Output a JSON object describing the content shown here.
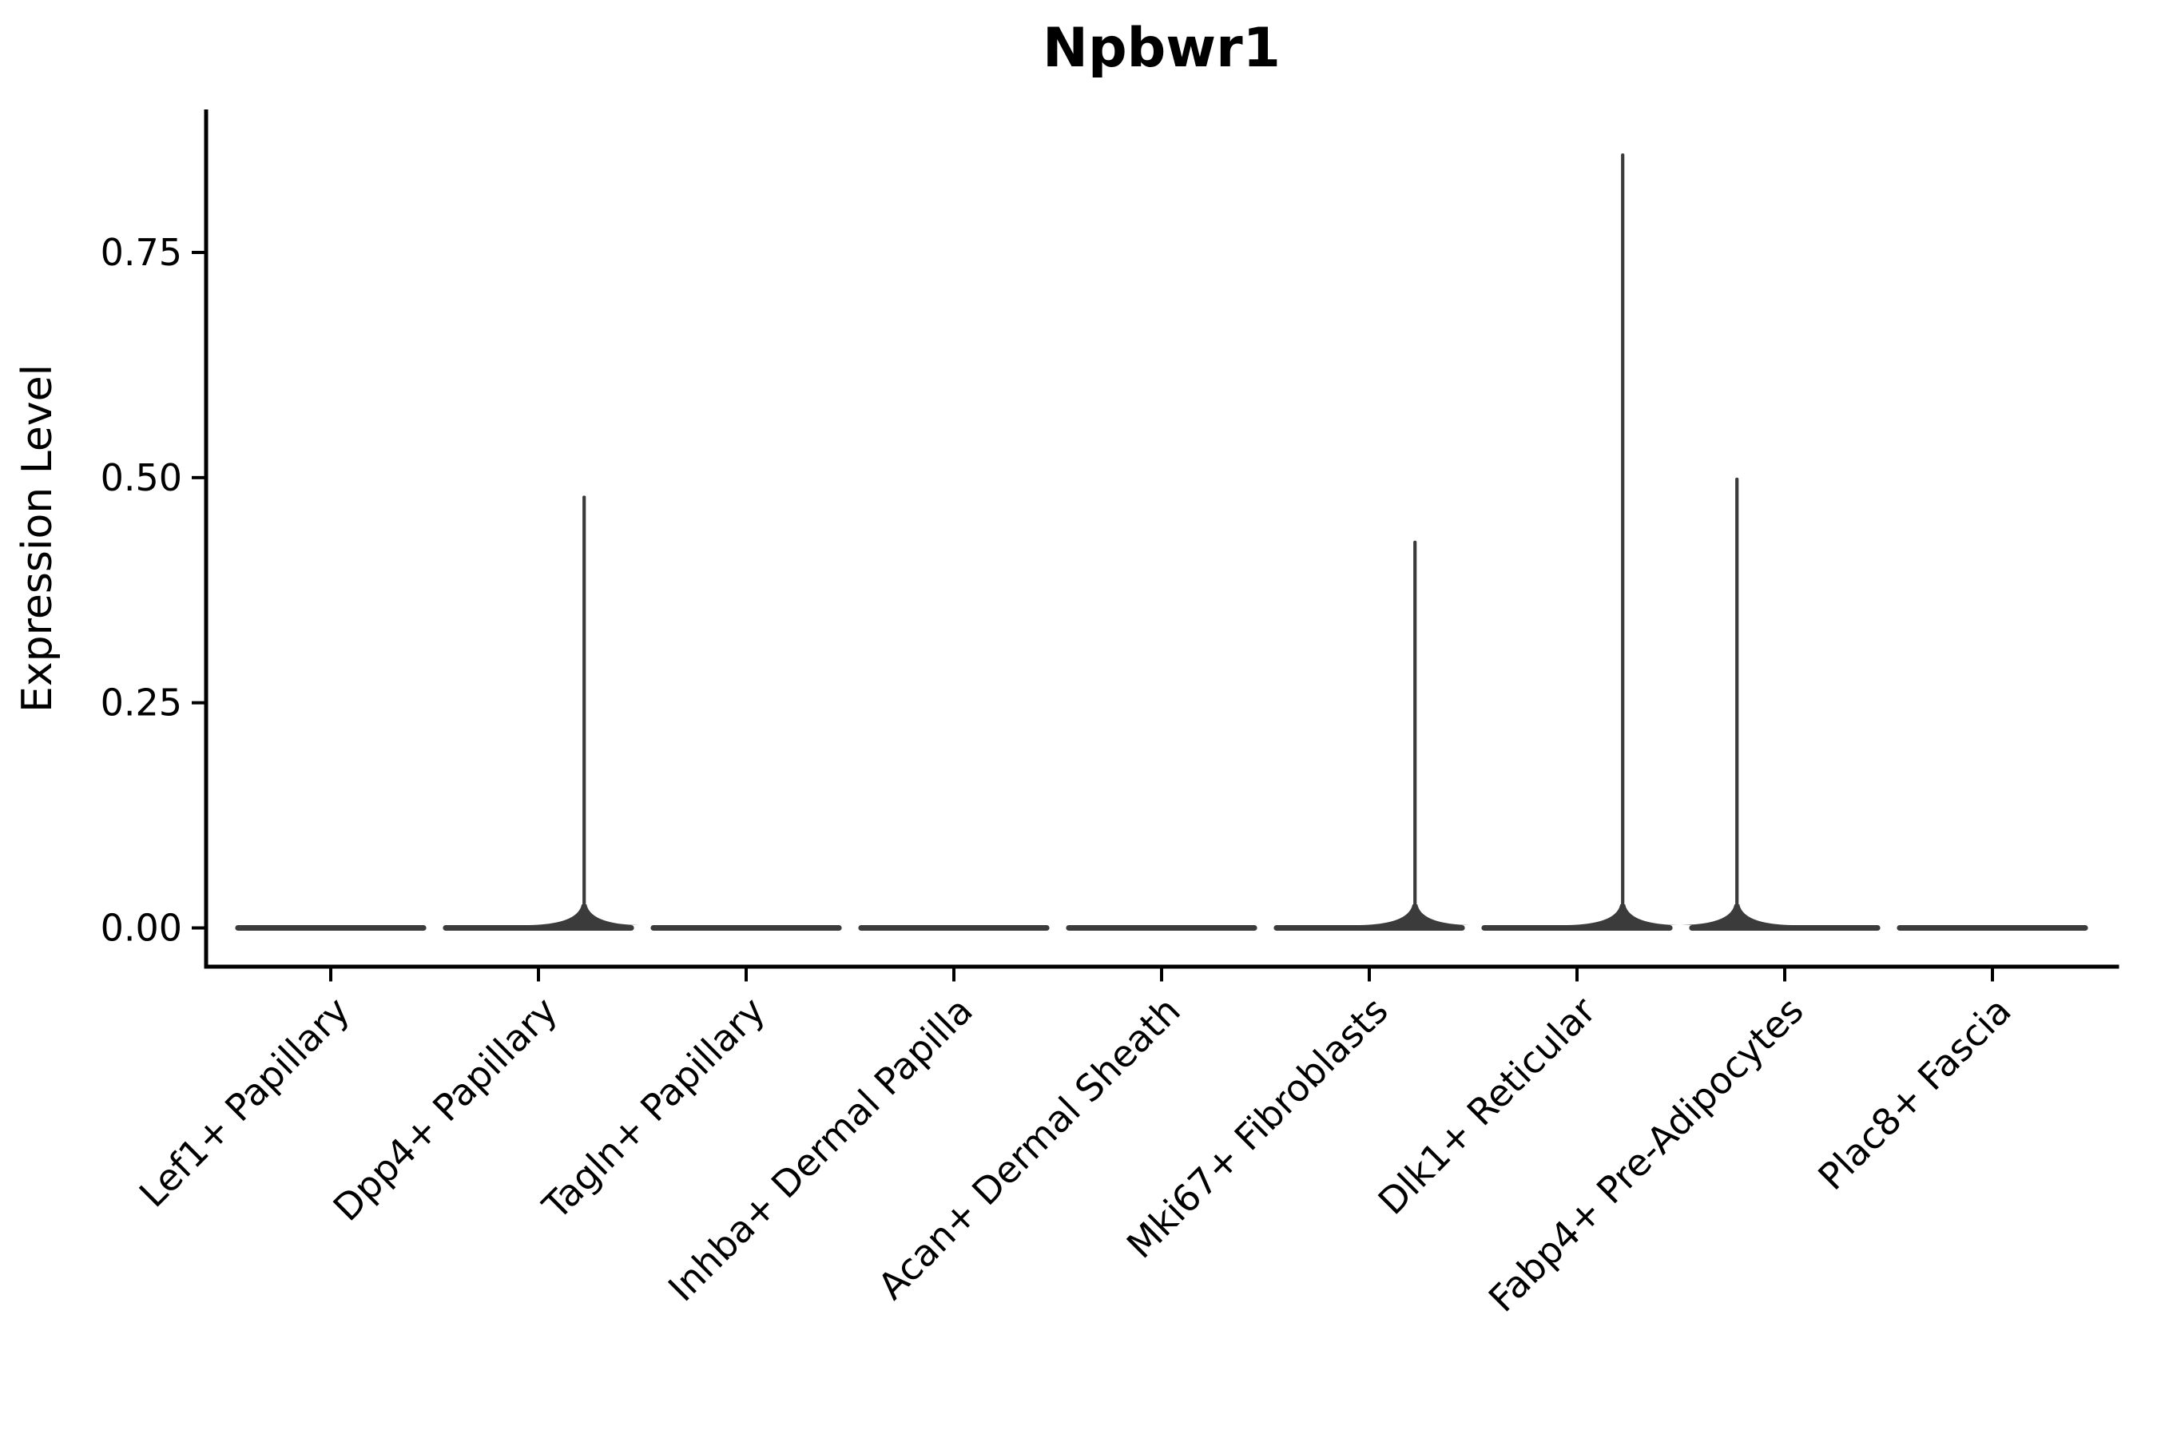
{
  "title": "Npbwr1",
  "axes": {
    "y_label": "Expression Level",
    "x_label": ""
  },
  "chart_data": {
    "type": "violin",
    "title": "Npbwr1",
    "ylabel": "Expression Level",
    "xlabel": "",
    "categories": [
      "Lef1+ Papillary",
      "Dpp4+ Papillary",
      "Tagln+ Papillary",
      "Inhba+ Dermal Papilla",
      "Acan+ Dermal Sheath",
      "Mki67+ Fibroblasts",
      "Dlk1+ Reticular",
      "Fabp4+ Pre-Adipocytes",
      "Plac8+ Fascia"
    ],
    "violins": [
      {
        "category": "Lef1+ Papillary",
        "bulk_value": 0,
        "peak": 0,
        "has_tail": false,
        "tail_offset_units": 0
      },
      {
        "category": "Dpp4+ Papillary",
        "bulk_value": 0,
        "peak": 0.48,
        "has_tail": true,
        "tail_offset_units": 0.22
      },
      {
        "category": "Tagln+ Papillary",
        "bulk_value": 0,
        "peak": 0,
        "has_tail": false,
        "tail_offset_units": 0
      },
      {
        "category": "Inhba+ Dermal Papilla",
        "bulk_value": 0,
        "peak": 0,
        "has_tail": false,
        "tail_offset_units": 0
      },
      {
        "category": "Acan+ Dermal Sheath",
        "bulk_value": 0,
        "peak": 0,
        "has_tail": false,
        "tail_offset_units": 0
      },
      {
        "category": "Mki67+ Fibroblasts",
        "bulk_value": 0,
        "peak": 0.43,
        "has_tail": true,
        "tail_offset_units": 0.22
      },
      {
        "category": "Dlk1+ Reticular",
        "bulk_value": 0,
        "peak": 0.86,
        "has_tail": true,
        "tail_offset_units": 0.22
      },
      {
        "category": "Fabp4+ Pre-Adipocytes",
        "bulk_value": 0,
        "peak": 0.5,
        "has_tail": true,
        "tail_offset_units": -0.23
      },
      {
        "category": "Plac8+ Fascia",
        "bulk_value": 0,
        "peak": 0,
        "has_tail": false,
        "tail_offset_units": 0
      }
    ],
    "y_ticks": [
      {
        "value": 0,
        "label": "0.00"
      },
      {
        "value": 0.25,
        "label": "0.25"
      },
      {
        "value": 0.5,
        "label": "0.50"
      },
      {
        "value": 0.75,
        "label": "0.75"
      }
    ],
    "ylim": [
      -0.043,
      0.907
    ],
    "violin_width_units": 0.92,
    "grid": false,
    "legend": null,
    "colors": {
      "violin": "#3B3B3B",
      "axis": "#000000",
      "text": "#000000",
      "background": "#FFFFFF"
    }
  }
}
